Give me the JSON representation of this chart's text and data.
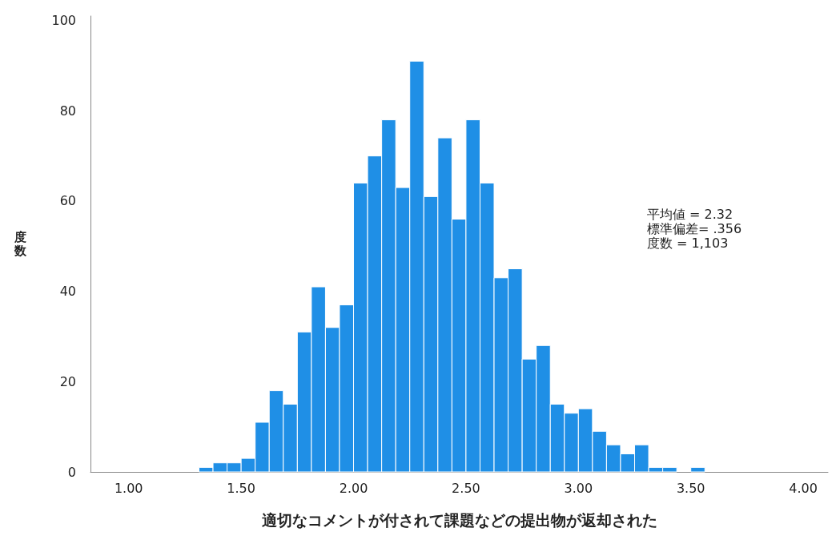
{
  "chart_data": {
    "type": "histogram",
    "xlabel": "適切なコメントが付されて課題などの提出物が返却された",
    "ylabel": "度数",
    "annotations": [
      "平均値 = 2.32",
      "標準偏差= .356",
      "度数 = 1,103"
    ],
    "bins": [
      1.3125,
      1.375,
      1.4375,
      1.5,
      1.5625,
      1.625,
      1.6875,
      1.75,
      1.8125,
      1.875,
      1.9375,
      2,
      2.0625,
      2.125,
      2.1875,
      2.25,
      2.3125,
      2.375,
      2.4375,
      2.5,
      2.5625,
      2.625,
      2.6875,
      2.75,
      2.8125,
      2.875,
      2.9375,
      3,
      3.0625,
      3.125,
      3.1875,
      3.25,
      3.3125,
      3.375,
      3.4375,
      3.5,
      3.5625
    ],
    "values": [
      1,
      2,
      2,
      3,
      11,
      18,
      15,
      31,
      41,
      32,
      37,
      64,
      70,
      78,
      63,
      91,
      61,
      74,
      56,
      78,
      64,
      43,
      45,
      25,
      28,
      15,
      13,
      14,
      9,
      6,
      4,
      6,
      1,
      1,
      0,
      1
    ],
    "color": "#1f8fe6",
    "xlim": [
      0.83,
      4.11
    ],
    "xticks": [
      {
        "value": 1,
        "label": "1.00"
      },
      {
        "value": 1.5,
        "label": "1.50"
      },
      {
        "value": 2,
        "label": "2.00"
      },
      {
        "value": 2.5,
        "label": "2.50"
      },
      {
        "value": 3,
        "label": "3.00"
      },
      {
        "value": 3.5,
        "label": "3.50"
      },
      {
        "value": 4,
        "label": "4.00"
      }
    ],
    "ylim": [
      0,
      101
    ],
    "yticks": [
      0,
      20,
      40,
      60,
      80,
      100
    ],
    "grid": false
  }
}
